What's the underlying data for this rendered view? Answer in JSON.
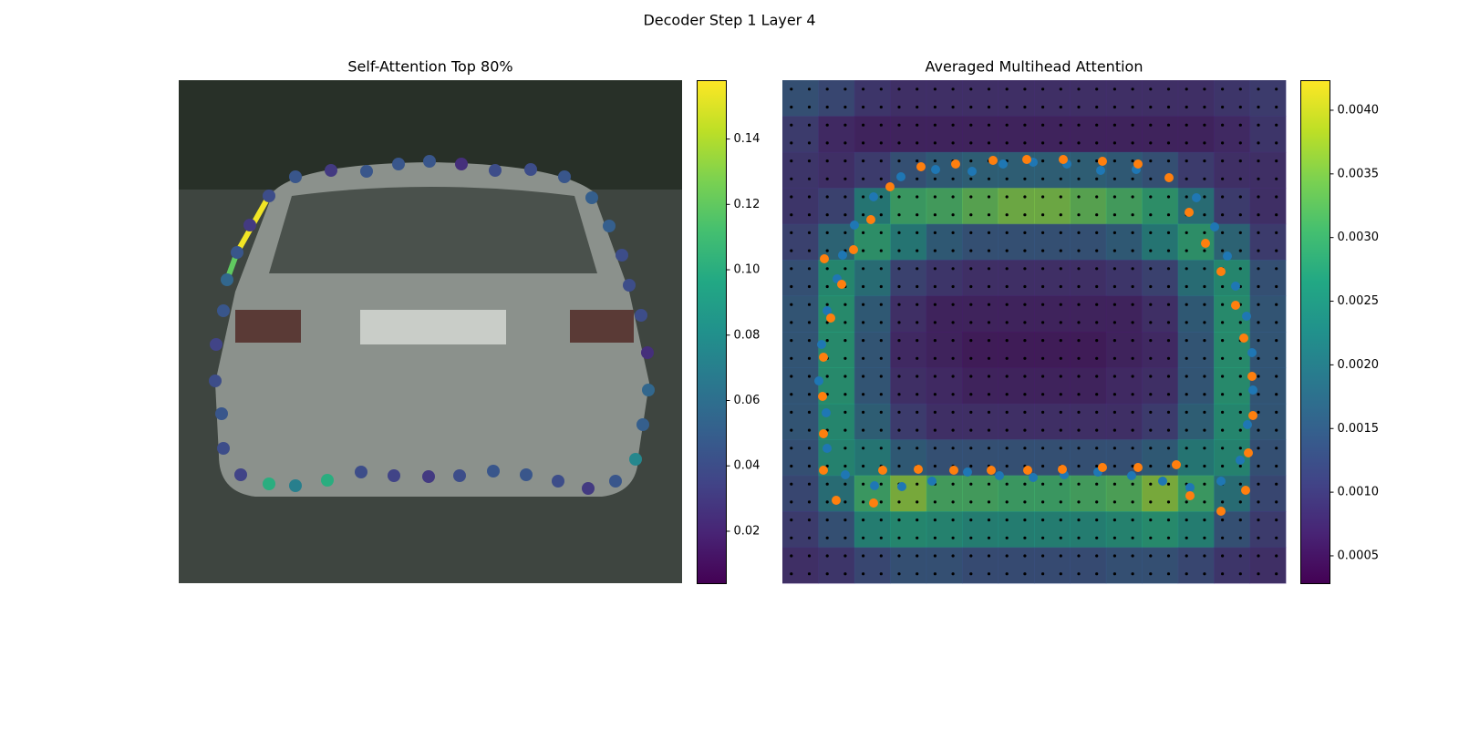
{
  "title": "Decoder Step 1 Layer 4",
  "chart_data": [
    {
      "type": "scatter",
      "title": "Self-Attention Top 80%",
      "colormap": "viridis",
      "xlim": [
        0,
        552
      ],
      "ylim": [
        552,
        0
      ],
      "x": [
        99,
        78,
        64,
        53,
        49,
        41,
        40,
        47,
        49,
        68,
        99,
        128,
        163,
        200,
        236,
        274,
        308,
        345,
        381,
        416,
        449,
        479,
        501,
        509,
        515,
        514,
        507,
        494,
        486,
        472,
        453,
        423,
        386,
        347,
        310,
        275,
        241,
        206,
        167,
        128
      ],
      "y": [
        127,
        159,
        189,
        219,
        253,
        290,
        330,
        366,
        404,
        433,
        443,
        445,
        439,
        430,
        434,
        435,
        434,
        429,
        433,
        440,
        448,
        440,
        416,
        378,
        340,
        299,
        258,
        225,
        192,
        160,
        129,
        106,
        98,
        99,
        92,
        89,
        92,
        100,
        99,
        106
      ],
      "values": [
        0.04,
        0.03,
        0.045,
        0.055,
        0.045,
        0.035,
        0.04,
        0.045,
        0.04,
        0.035,
        0.1,
        0.07,
        0.1,
        0.04,
        0.035,
        0.03,
        0.04,
        0.045,
        0.045,
        0.04,
        0.03,
        0.045,
        0.075,
        0.05,
        0.055,
        0.025,
        0.04,
        0.04,
        0.04,
        0.05,
        0.05,
        0.045,
        0.04,
        0.04,
        0.025,
        0.045,
        0.045,
        0.045,
        0.03,
        0.045
      ],
      "lines": {
        "x0": [
          99,
          64
        ],
        "y0": [
          127,
          189
        ],
        "x1": [
          64,
          53
        ],
        "y1": [
          189,
          219
        ],
        "values": [
          0.155,
          0.12
        ]
      },
      "clim": [
        0.0041,
        0.158
      ],
      "cticks": [
        0.02,
        0.04,
        0.06,
        0.08,
        {
          "value": 0.1,
          "label": "0.10"
        },
        0.12,
        0.14
      ]
    },
    {
      "type": "heatmap",
      "title": "Averaged Multihead Attention",
      "colormap": "viridis",
      "xlim": [
        0,
        552
      ],
      "ylim": [
        552,
        0
      ],
      "heatmap": [
        [
          0.0014,
          0.0012,
          0.0009,
          0.0008,
          0.0008,
          0.0008,
          0.0008,
          0.0008,
          0.0008,
          0.0008,
          0.0008,
          0.0008,
          0.0009,
          0.001
        ],
        [
          0.001,
          0.0007,
          0.0006,
          0.0006,
          0.0006,
          0.0006,
          0.0006,
          0.0006,
          0.0006,
          0.0006,
          0.0006,
          0.0006,
          0.0007,
          0.0009
        ],
        [
          0.0009,
          0.0008,
          0.001,
          0.0014,
          0.0016,
          0.0017,
          0.0017,
          0.0017,
          0.0017,
          0.0016,
          0.0014,
          0.001,
          0.0008,
          0.0008
        ],
        [
          0.0009,
          0.0011,
          0.0022,
          0.003,
          0.0031,
          0.0033,
          0.0035,
          0.0035,
          0.0033,
          0.0031,
          0.0028,
          0.002,
          0.001,
          0.0008
        ],
        [
          0.0011,
          0.0018,
          0.0028,
          0.0022,
          0.0016,
          0.0014,
          0.0014,
          0.0014,
          0.0014,
          0.0016,
          0.0022,
          0.0028,
          0.0018,
          0.001
        ],
        [
          0.0014,
          0.0026,
          0.002,
          0.0011,
          0.0009,
          0.0008,
          0.0008,
          0.0008,
          0.0008,
          0.0009,
          0.0011,
          0.002,
          0.0026,
          0.0014
        ],
        [
          0.0015,
          0.0027,
          0.0016,
          0.0008,
          0.0006,
          0.0006,
          0.0006,
          0.0006,
          0.0006,
          0.0006,
          0.0008,
          0.0016,
          0.0027,
          0.0015
        ],
        [
          0.0015,
          0.0027,
          0.0015,
          0.0007,
          0.0006,
          0.0005,
          0.0005,
          0.0005,
          0.0005,
          0.0006,
          0.0007,
          0.0015,
          0.0027,
          0.0015
        ],
        [
          0.0015,
          0.0027,
          0.0015,
          0.0008,
          0.0007,
          0.0006,
          0.0006,
          0.0006,
          0.0006,
          0.0007,
          0.0008,
          0.0015,
          0.0027,
          0.0015
        ],
        [
          0.0015,
          0.0026,
          0.0017,
          0.001,
          0.0008,
          0.0008,
          0.0008,
          0.0008,
          0.0008,
          0.0008,
          0.001,
          0.0017,
          0.0026,
          0.0015
        ],
        [
          0.0014,
          0.0025,
          0.0022,
          0.0016,
          0.0014,
          0.0014,
          0.0014,
          0.0014,
          0.0014,
          0.0014,
          0.0016,
          0.0022,
          0.0025,
          0.0014
        ],
        [
          0.0012,
          0.002,
          0.003,
          0.0036,
          0.0031,
          0.0031,
          0.003,
          0.003,
          0.0031,
          0.0032,
          0.0036,
          0.003,
          0.002,
          0.0012
        ],
        [
          0.001,
          0.0014,
          0.0024,
          0.0026,
          0.0025,
          0.0024,
          0.0024,
          0.0024,
          0.0024,
          0.0025,
          0.0027,
          0.0024,
          0.0014,
          0.001
        ],
        [
          0.0008,
          0.0009,
          0.0012,
          0.0014,
          0.0014,
          0.0013,
          0.0013,
          0.0013,
          0.0013,
          0.0014,
          0.0014,
          0.0012,
          0.0009,
          0.0008
        ]
      ],
      "series": [
        {
          "color": "#1f77b4",
          "x": [
            130,
            168,
            208,
            242,
            275,
            312,
            349,
            388,
            454,
            474,
            488,
            497,
            509,
            515,
            516,
            510,
            502,
            481,
            447,
            417,
            383,
            346,
            309,
            275,
            238,
            203,
            164,
            131,
            101,
            69,
            49,
            48,
            40,
            43,
            49,
            60,
            66,
            79,
            100
          ],
          "y": [
            106,
            98,
            100,
            92,
            90,
            92,
            99,
            98,
            129,
            161,
            193,
            226,
            259,
            299,
            340,
            378,
            417,
            440,
            447,
            440,
            434,
            430,
            433,
            436,
            434,
            430,
            440,
            446,
            445,
            433,
            404,
            365,
            330,
            290,
            253,
            218,
            192,
            159,
            128
          ]
        },
        {
          "color": "#ff7f0e",
          "x": [
            152,
            190,
            231,
            268,
            308,
            351,
            390,
            424,
            446,
            464,
            481,
            497,
            506,
            515,
            516,
            511,
            508,
            481,
            447,
            432,
            390,
            351,
            307,
            269,
            229,
            188,
            149,
            110,
            100,
            59,
            45,
            45,
            44,
            45,
            53,
            65,
            78,
            97,
            118,
            46
          ],
          "y": [
            95,
            92,
            88,
            87,
            87,
            89,
            92,
            107,
            145,
            179,
            210,
            247,
            283,
            325,
            368,
            409,
            450,
            473,
            456,
            422,
            425,
            425,
            427,
            428,
            428,
            428,
            427,
            428,
            464,
            461,
            428,
            388,
            347,
            304,
            261,
            224,
            186,
            153,
            117,
            196
          ]
        }
      ],
      "clim": [
        0.000285,
        0.004236
      ],
      "cticks": [
        0.0005,
        {
          "value": 0.001,
          "label": "0.0010"
        },
        0.0015,
        {
          "value": 0.002,
          "label": "0.0020"
        },
        0.0025,
        {
          "value": 0.003,
          "label": "0.0030"
        },
        0.0035,
        {
          "value": 0.004,
          "label": "0.0040"
        }
      ]
    }
  ]
}
